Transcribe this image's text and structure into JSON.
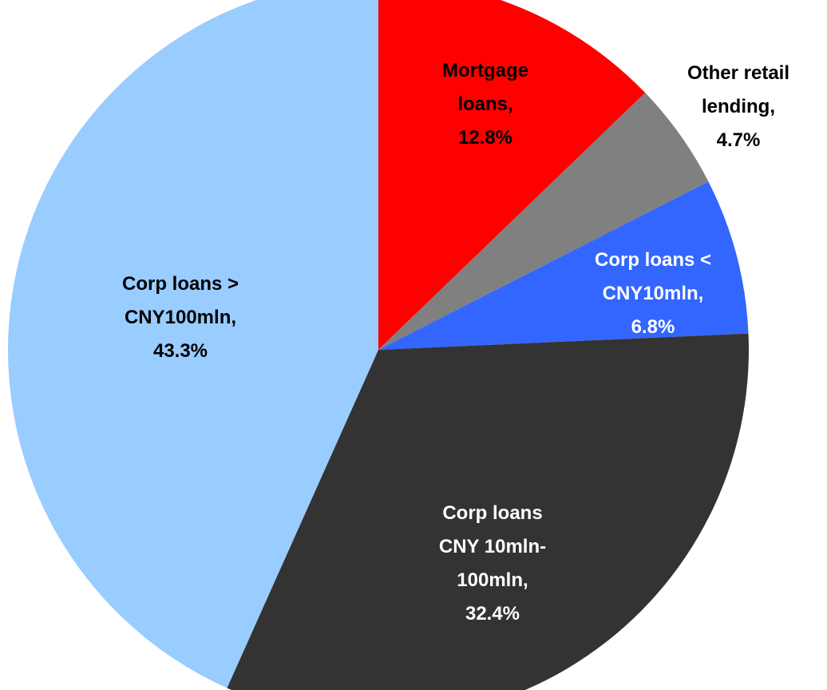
{
  "chart_data": {
    "type": "pie",
    "categories": [
      "Mortgage loans,",
      "Other retail lending,",
      "Corp loans < CNY10mln,",
      "Corp loans CNY 10mln-100mln,",
      "Corp loans > CNY100mln,"
    ],
    "values": [
      12.8,
      4.7,
      6.8,
      32.4,
      43.3
    ],
    "value_labels": [
      "12.8%",
      "4.7%",
      "6.8%",
      "32.4%",
      "43.3%"
    ],
    "colors": [
      "#ff0000",
      "#808080",
      "#3366ff",
      "#333333",
      "#99ccff"
    ]
  }
}
